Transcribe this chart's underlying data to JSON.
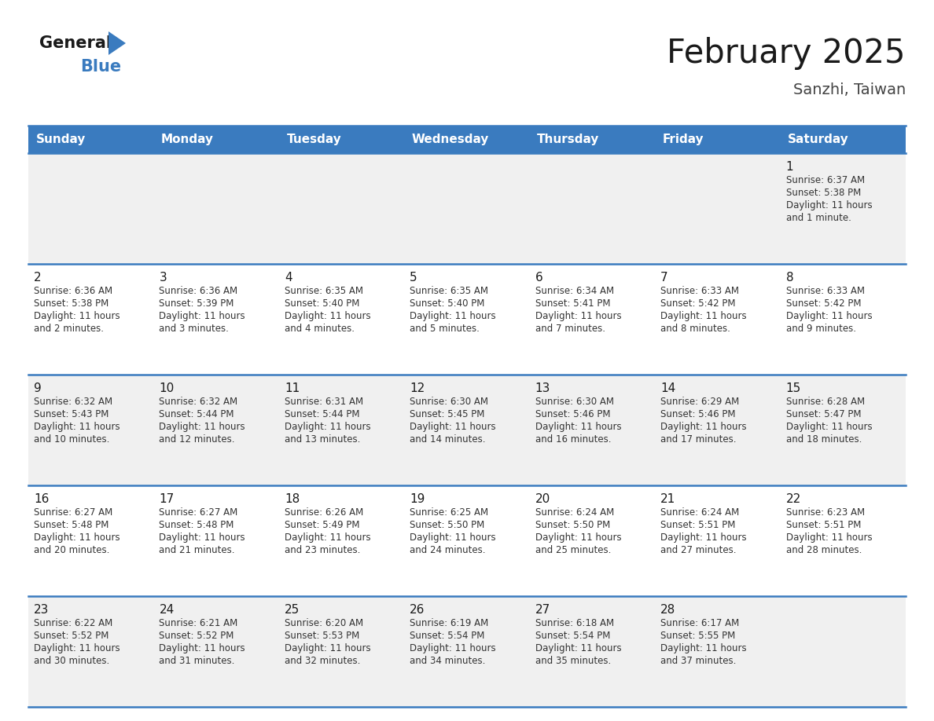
{
  "title": "February 2025",
  "subtitle": "Sanzhi, Taiwan",
  "header_color": "#3a7bbf",
  "header_text_color": "#ffffff",
  "cell_bg_even": "#f0f0f0",
  "cell_bg_odd": "#ffffff",
  "border_color": "#3a7bbf",
  "text_color": "#333333",
  "day_num_color": "#333333",
  "day_headers": [
    "Sunday",
    "Monday",
    "Tuesday",
    "Wednesday",
    "Thursday",
    "Friday",
    "Saturday"
  ],
  "days": [
    {
      "day": 1,
      "col": 6,
      "row": 0,
      "sunrise": "6:37 AM",
      "sunset": "5:38 PM",
      "daylight_line1": "Daylight: 11 hours",
      "daylight_line2": "and 1 minute."
    },
    {
      "day": 2,
      "col": 0,
      "row": 1,
      "sunrise": "6:36 AM",
      "sunset": "5:38 PM",
      "daylight_line1": "Daylight: 11 hours",
      "daylight_line2": "and 2 minutes."
    },
    {
      "day": 3,
      "col": 1,
      "row": 1,
      "sunrise": "6:36 AM",
      "sunset": "5:39 PM",
      "daylight_line1": "Daylight: 11 hours",
      "daylight_line2": "and 3 minutes."
    },
    {
      "day": 4,
      "col": 2,
      "row": 1,
      "sunrise": "6:35 AM",
      "sunset": "5:40 PM",
      "daylight_line1": "Daylight: 11 hours",
      "daylight_line2": "and 4 minutes."
    },
    {
      "day": 5,
      "col": 3,
      "row": 1,
      "sunrise": "6:35 AM",
      "sunset": "5:40 PM",
      "daylight_line1": "Daylight: 11 hours",
      "daylight_line2": "and 5 minutes."
    },
    {
      "day": 6,
      "col": 4,
      "row": 1,
      "sunrise": "6:34 AM",
      "sunset": "5:41 PM",
      "daylight_line1": "Daylight: 11 hours",
      "daylight_line2": "and 7 minutes."
    },
    {
      "day": 7,
      "col": 5,
      "row": 1,
      "sunrise": "6:33 AM",
      "sunset": "5:42 PM",
      "daylight_line1": "Daylight: 11 hours",
      "daylight_line2": "and 8 minutes."
    },
    {
      "day": 8,
      "col": 6,
      "row": 1,
      "sunrise": "6:33 AM",
      "sunset": "5:42 PM",
      "daylight_line1": "Daylight: 11 hours",
      "daylight_line2": "and 9 minutes."
    },
    {
      "day": 9,
      "col": 0,
      "row": 2,
      "sunrise": "6:32 AM",
      "sunset": "5:43 PM",
      "daylight_line1": "Daylight: 11 hours",
      "daylight_line2": "and 10 minutes."
    },
    {
      "day": 10,
      "col": 1,
      "row": 2,
      "sunrise": "6:32 AM",
      "sunset": "5:44 PM",
      "daylight_line1": "Daylight: 11 hours",
      "daylight_line2": "and 12 minutes."
    },
    {
      "day": 11,
      "col": 2,
      "row": 2,
      "sunrise": "6:31 AM",
      "sunset": "5:44 PM",
      "daylight_line1": "Daylight: 11 hours",
      "daylight_line2": "and 13 minutes."
    },
    {
      "day": 12,
      "col": 3,
      "row": 2,
      "sunrise": "6:30 AM",
      "sunset": "5:45 PM",
      "daylight_line1": "Daylight: 11 hours",
      "daylight_line2": "and 14 minutes."
    },
    {
      "day": 13,
      "col": 4,
      "row": 2,
      "sunrise": "6:30 AM",
      "sunset": "5:46 PM",
      "daylight_line1": "Daylight: 11 hours",
      "daylight_line2": "and 16 minutes."
    },
    {
      "day": 14,
      "col": 5,
      "row": 2,
      "sunrise": "6:29 AM",
      "sunset": "5:46 PM",
      "daylight_line1": "Daylight: 11 hours",
      "daylight_line2": "and 17 minutes."
    },
    {
      "day": 15,
      "col": 6,
      "row": 2,
      "sunrise": "6:28 AM",
      "sunset": "5:47 PM",
      "daylight_line1": "Daylight: 11 hours",
      "daylight_line2": "and 18 minutes."
    },
    {
      "day": 16,
      "col": 0,
      "row": 3,
      "sunrise": "6:27 AM",
      "sunset": "5:48 PM",
      "daylight_line1": "Daylight: 11 hours",
      "daylight_line2": "and 20 minutes."
    },
    {
      "day": 17,
      "col": 1,
      "row": 3,
      "sunrise": "6:27 AM",
      "sunset": "5:48 PM",
      "daylight_line1": "Daylight: 11 hours",
      "daylight_line2": "and 21 minutes."
    },
    {
      "day": 18,
      "col": 2,
      "row": 3,
      "sunrise": "6:26 AM",
      "sunset": "5:49 PM",
      "daylight_line1": "Daylight: 11 hours",
      "daylight_line2": "and 23 minutes."
    },
    {
      "day": 19,
      "col": 3,
      "row": 3,
      "sunrise": "6:25 AM",
      "sunset": "5:50 PM",
      "daylight_line1": "Daylight: 11 hours",
      "daylight_line2": "and 24 minutes."
    },
    {
      "day": 20,
      "col": 4,
      "row": 3,
      "sunrise": "6:24 AM",
      "sunset": "5:50 PM",
      "daylight_line1": "Daylight: 11 hours",
      "daylight_line2": "and 25 minutes."
    },
    {
      "day": 21,
      "col": 5,
      "row": 3,
      "sunrise": "6:24 AM",
      "sunset": "5:51 PM",
      "daylight_line1": "Daylight: 11 hours",
      "daylight_line2": "and 27 minutes."
    },
    {
      "day": 22,
      "col": 6,
      "row": 3,
      "sunrise": "6:23 AM",
      "sunset": "5:51 PM",
      "daylight_line1": "Daylight: 11 hours",
      "daylight_line2": "and 28 minutes."
    },
    {
      "day": 23,
      "col": 0,
      "row": 4,
      "sunrise": "6:22 AM",
      "sunset": "5:52 PM",
      "daylight_line1": "Daylight: 11 hours",
      "daylight_line2": "and 30 minutes."
    },
    {
      "day": 24,
      "col": 1,
      "row": 4,
      "sunrise": "6:21 AM",
      "sunset": "5:52 PM",
      "daylight_line1": "Daylight: 11 hours",
      "daylight_line2": "and 31 minutes."
    },
    {
      "day": 25,
      "col": 2,
      "row": 4,
      "sunrise": "6:20 AM",
      "sunset": "5:53 PM",
      "daylight_line1": "Daylight: 11 hours",
      "daylight_line2": "and 32 minutes."
    },
    {
      "day": 26,
      "col": 3,
      "row": 4,
      "sunrise": "6:19 AM",
      "sunset": "5:54 PM",
      "daylight_line1": "Daylight: 11 hours",
      "daylight_line2": "and 34 minutes."
    },
    {
      "day": 27,
      "col": 4,
      "row": 4,
      "sunrise": "6:18 AM",
      "sunset": "5:54 PM",
      "daylight_line1": "Daylight: 11 hours",
      "daylight_line2": "and 35 minutes."
    },
    {
      "day": 28,
      "col": 5,
      "row": 4,
      "sunrise": "6:17 AM",
      "sunset": "5:55 PM",
      "daylight_line1": "Daylight: 11 hours",
      "daylight_line2": "and 37 minutes."
    }
  ],
  "num_rows": 5,
  "num_cols": 7,
  "fig_width": 11.88,
  "fig_height": 9.18
}
